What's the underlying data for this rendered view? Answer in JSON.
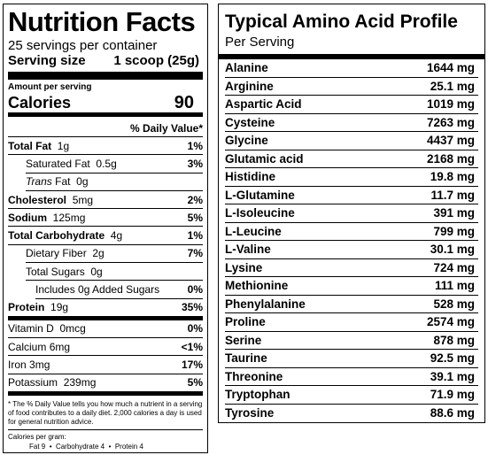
{
  "nutrition": {
    "title": "Nutrition Facts",
    "servings": "25 servings per container",
    "serving_size_label": "Serving size",
    "serving_size_value": "1 scoop (25g)",
    "amount_per_serving": "Amount per serving",
    "calories_label": "Calories",
    "calories_value": "90",
    "dv_header": "% Daily Value*",
    "rows": [
      {
        "name": "Total Fat",
        "amount": "1g",
        "pct": "1%"
      },
      {
        "name": "Saturated Fat",
        "amount": "0.5g",
        "pct": "3%"
      },
      {
        "name": "Trans",
        "amount": "Fat  0g",
        "pct": ""
      },
      {
        "name": "Cholesterol",
        "amount": "5mg",
        "pct": "2%"
      },
      {
        "name": "Sodium",
        "amount": "125mg",
        "pct": "5%"
      },
      {
        "name": "Total Carbohydrate",
        "amount": "4g",
        "pct": "1%"
      },
      {
        "name": "Dietary Fiber",
        "amount": "2g",
        "pct": "7%"
      },
      {
        "name": "Total Sugars",
        "amount": "0g",
        "pct": ""
      },
      {
        "name": "Includes 0g Added Sugars",
        "amount": "",
        "pct": "0%"
      },
      {
        "name": "Protein",
        "amount": "19g",
        "pct": "35%"
      },
      {
        "name": "Vitamin D",
        "amount": "0mcg",
        "pct": "0%"
      },
      {
        "name": "Calcium",
        "amount": "6mg",
        "pct": "<1%"
      },
      {
        "name": "Iron",
        "amount": "3mg",
        "pct": "17%"
      },
      {
        "name": "Potassium",
        "amount": "239mg",
        "pct": "5%"
      }
    ],
    "footnote": "* The % Daily Value tells you how much a nutrient in a serving of food contributes to a daily diet. 2,000 calories a day is used for general nutrition advice.",
    "calories_per_gram": "Calories per gram:",
    "cal_fat": "Fat 9",
    "cal_carb": "Carbohydrate 4",
    "cal_protein": "Protein 4",
    "bullet": "•"
  },
  "amino": {
    "title": "Typical Amino Acid Profile",
    "subtitle": "Per Serving",
    "rows": [
      {
        "name": "Alanine",
        "value": "1644 mg"
      },
      {
        "name": "Arginine",
        "value": "25.1 mg"
      },
      {
        "name": "Aspartic Acid",
        "value": "1019 mg"
      },
      {
        "name": "Cysteine",
        "value": "7263 mg"
      },
      {
        "name": "Glycine",
        "value": "4437 mg"
      },
      {
        "name": "Glutamic acid",
        "value": "2168 mg"
      },
      {
        "name": "Histidine",
        "value": "19.8 mg"
      },
      {
        "name": "L-Glutamine",
        "value": "11.7 mg"
      },
      {
        "name": "L-Isoleucine",
        "value": "391 mg"
      },
      {
        "name": "L-Leucine",
        "value": "799 mg"
      },
      {
        "name": "L-Valine",
        "value": "30.1 mg"
      },
      {
        "name": "Lysine",
        "value": "724 mg"
      },
      {
        "name": "Methionine",
        "value": "111 mg"
      },
      {
        "name": "Phenylalanine",
        "value": "528 mg"
      },
      {
        "name": "Proline",
        "value": "2574 mg"
      },
      {
        "name": "Serine",
        "value": "878 mg"
      },
      {
        "name": "Taurine",
        "value": "92.5 mg"
      },
      {
        "name": "Threonine",
        "value": "39.1 mg"
      },
      {
        "name": "Tryptophan",
        "value": "71.9 mg"
      },
      {
        "name": "Tyrosine",
        "value": "88.6 mg"
      }
    ]
  }
}
